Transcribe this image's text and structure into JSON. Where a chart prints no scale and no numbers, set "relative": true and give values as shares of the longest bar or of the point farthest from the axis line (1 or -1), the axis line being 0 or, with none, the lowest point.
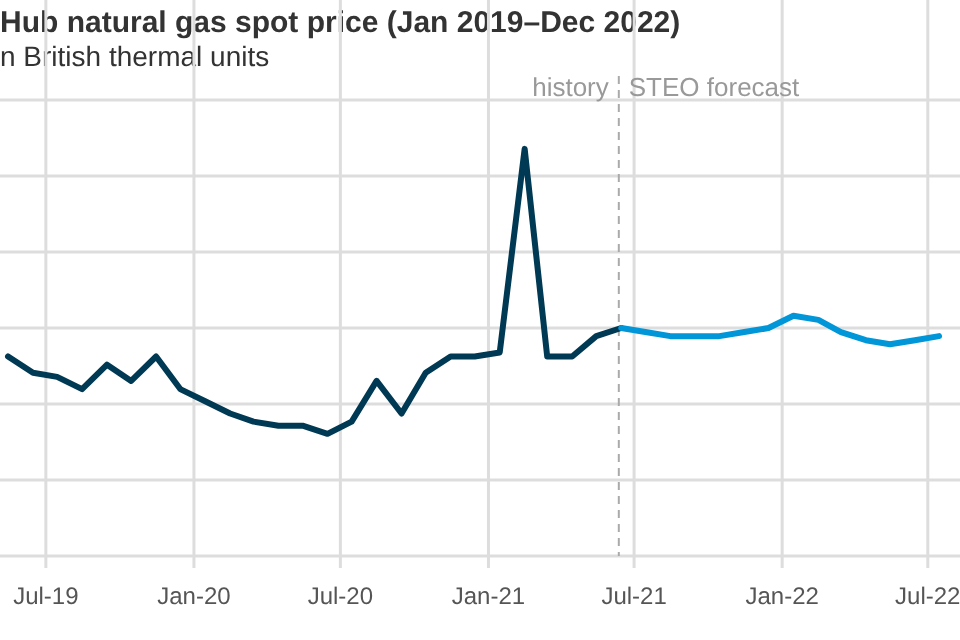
{
  "chart_data": {
    "type": "line",
    "title": "Hub natural gas spot price (Jan 2019–Dec 2022)",
    "subtitle": "n British thermal units",
    "relative": true,
    "grid": true,
    "marker": "none",
    "line_style": "solid",
    "xlim": [
      "2019-05-05",
      "2022-08-10"
    ],
    "xticks": [
      {
        "value": "2019-07-01",
        "label": "Jul-19"
      },
      {
        "value": "2020-01-01",
        "label": "Jan-20"
      },
      {
        "value": "2020-07-01",
        "label": "Jul-20"
      },
      {
        "value": "2021-01-01",
        "label": "Jan-21"
      },
      {
        "value": "2021-07-01",
        "label": "Jul-21"
      },
      {
        "value": "2022-01-01",
        "label": "Jan-22"
      },
      {
        "value": "2022-07-01",
        "label": "Jul-22"
      }
    ],
    "series": [
      {
        "color": "#003953",
        "x": [
          "2019-05-15",
          "2019-06-15",
          "2019-07-15",
          "2019-08-15",
          "2019-09-15",
          "2019-10-15",
          "2019-11-15",
          "2019-12-15",
          "2020-01-15",
          "2020-02-15",
          "2020-03-15",
          "2020-04-15",
          "2020-05-15",
          "2020-06-15",
          "2020-07-15",
          "2020-08-15",
          "2020-09-15",
          "2020-10-15",
          "2020-11-15",
          "2020-12-15",
          "2021-01-15",
          "2021-02-15",
          "2021-03-15",
          "2021-04-15",
          "2021-05-15",
          "2021-06-15"
        ],
        "values": [
          0.49,
          0.45,
          0.44,
          0.41,
          0.47,
          0.43,
          0.49,
          0.41,
          0.38,
          0.35,
          0.33,
          0.32,
          0.32,
          0.3,
          0.33,
          0.43,
          0.35,
          0.45,
          0.49,
          0.49,
          0.5,
          1,
          0.49,
          0.49,
          0.54,
          0.56
        ]
      },
      {
        "color": "#0096d7",
        "x": [
          "2021-06-15",
          "2021-07-15",
          "2021-08-15",
          "2021-09-15",
          "2021-10-15",
          "2021-11-15",
          "2021-12-15",
          "2022-01-15",
          "2022-02-15",
          "2022-03-15",
          "2022-04-15",
          "2022-05-15",
          "2022-06-15",
          "2022-07-15"
        ],
        "values": [
          0.56,
          0.55,
          0.54,
          0.54,
          0.54,
          0.55,
          0.56,
          0.59,
          0.58,
          0.55,
          0.53,
          0.52,
          0.53,
          0.54
        ]
      }
    ],
    "ref_lines": [
      {
        "axis": "x",
        "value": "2021-06-12",
        "color": "#aaaaaa",
        "line_style": "dashed"
      }
    ],
    "annotations": [
      "history",
      "STEO forecast"
    ]
  }
}
